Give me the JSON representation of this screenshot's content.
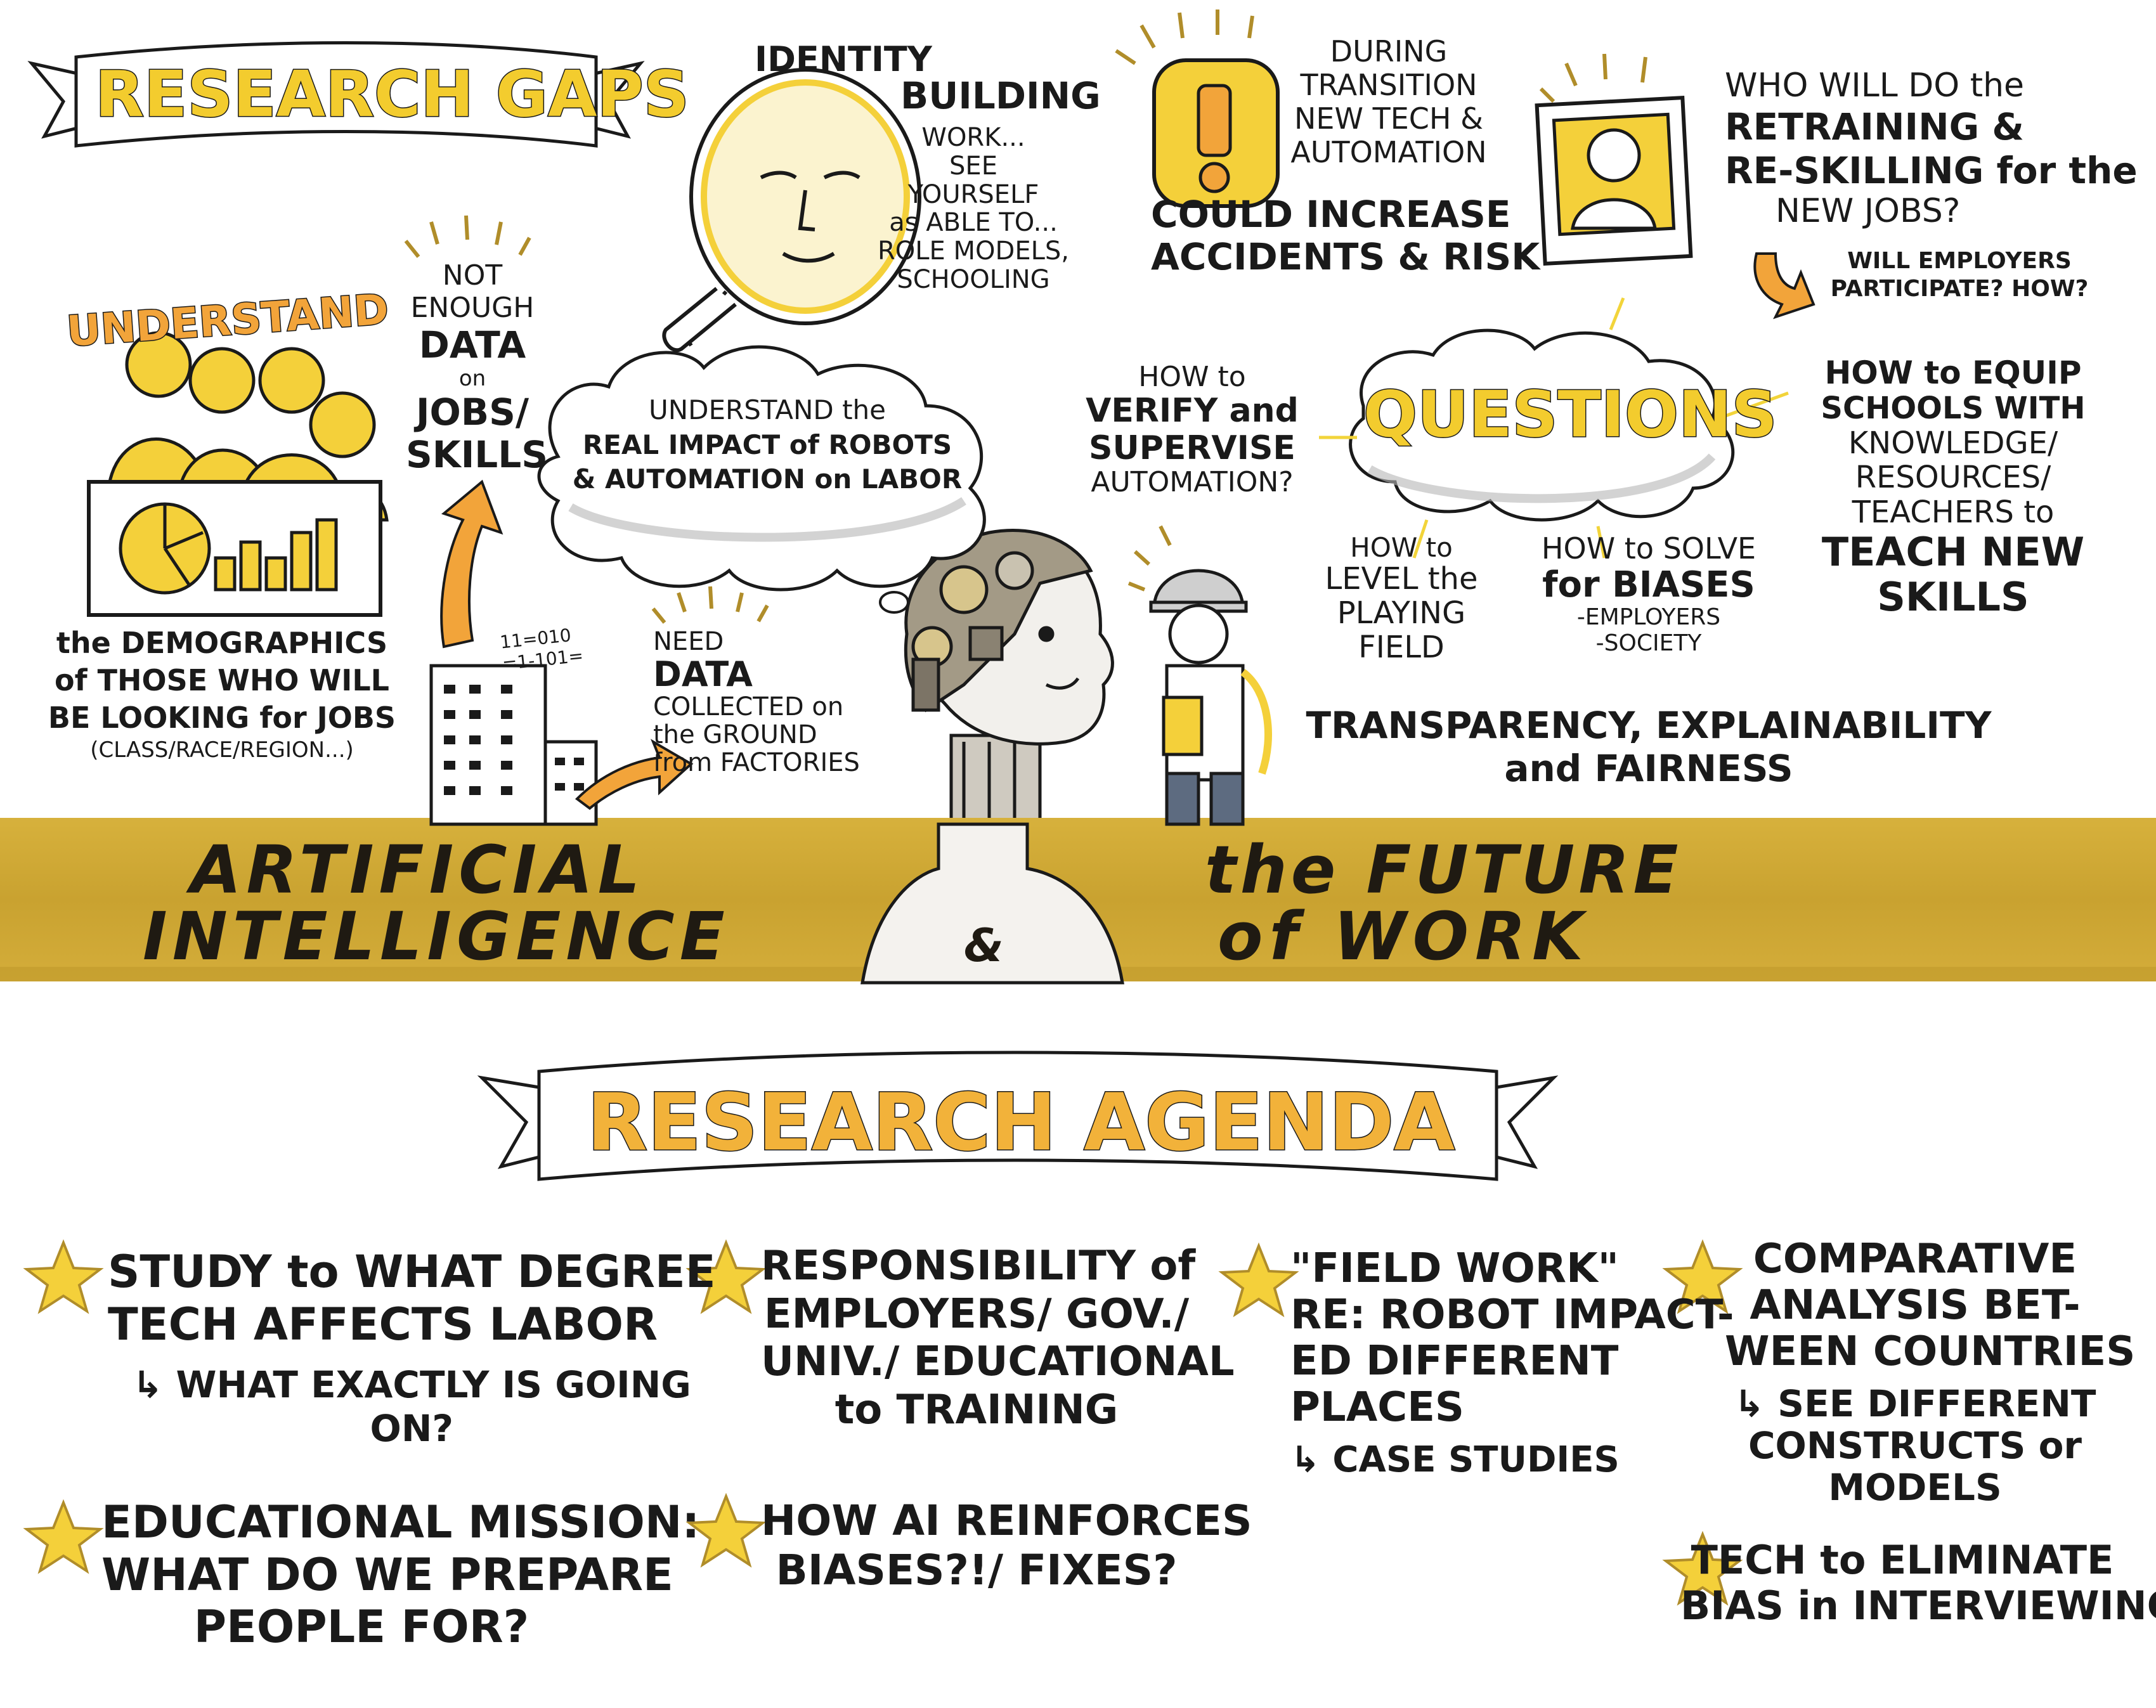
{
  "title": {
    "line1": "ARTIFICIAL",
    "line2": "INTELLIGENCE",
    "amp": "&",
    "line3": "the FUTURE",
    "line4": "of WORK"
  },
  "research_gaps": {
    "banner": "RESEARCH GAPS",
    "understand": {
      "heading": "UNDERSTAND",
      "lines": [
        "the DEMOGRAPHICS",
        "of THOSE WHO WILL",
        "BE LOOKING for JOBS",
        "(CLASS/RACE/REGION...)"
      ]
    },
    "not_enough_data": [
      "NOT",
      "ENOUGH",
      "DATA",
      "on",
      "JOBS/",
      "SKILLS"
    ],
    "need_data": [
      "NEED",
      "DATA",
      "COLLECTED on",
      "the GROUND",
      "from FACTORIES"
    ],
    "binary": [
      "11=010",
      "=1-101="
    ],
    "identity": [
      "IDENTITY",
      "BUILDING",
      "WORK...",
      "SEE",
      "YOURSELF",
      "as ABLE TO...",
      "ROLE MODELS,",
      "SCHOOLING"
    ],
    "thought_cloud": [
      "UNDERSTAND the",
      "REAL IMPACT of ROBOTS",
      "& AUTOMATION on LABOR"
    ],
    "accidents": [
      "DURING",
      "TRANSITION",
      "NEW TECH &",
      "AUTOMATION",
      "COULD INCREASE",
      "ACCIDENTS & RISK"
    ],
    "retraining": [
      "WHO WILL DO the",
      "RETRAINING &",
      "RE-SKILLING for the",
      "NEW JOBS?"
    ],
    "employers": [
      "WILL EMPLOYERS",
      "PARTICIPATE? HOW?"
    ],
    "questions": {
      "center": "QUESTIONS",
      "verify": [
        "HOW to",
        "VERIFY and",
        "SUPERVISE",
        "AUTOMATION?"
      ],
      "level": [
        "HOW to",
        "LEVEL the",
        "PLAYING",
        "FIELD"
      ],
      "biases": [
        "HOW to SOLVE",
        "for BIASES",
        "-EMPLOYERS",
        "-SOCIETY"
      ],
      "equip": [
        "HOW to EQUIP",
        "SCHOOLS WITH",
        "KNOWLEDGE/",
        "RESOURCES/",
        "TEACHERS to",
        "TEACH NEW",
        "SKILLS"
      ]
    },
    "transparency": [
      "TRANSPARENCY, EXPLAINABILITY",
      "and FAIRNESS"
    ]
  },
  "research_agenda": {
    "banner": "RESEARCH AGENDA",
    "items": [
      {
        "lines": [
          "STUDY to WHAT DEGREE",
          "TECH AFFECTS LABOR"
        ],
        "sub": [
          "↳ WHAT EXACTLY IS GOING",
          "ON?"
        ]
      },
      {
        "lines": [
          "EDUCATIONAL MISSION:",
          "WHAT DO WE PREPARE",
          "PEOPLE FOR?"
        ],
        "sub": []
      },
      {
        "lines": [
          "RESPONSIBILITY of",
          "EMPLOYERS/ GOV./",
          "UNIV./ EDUCATIONAL",
          "to TRAINING"
        ],
        "sub": []
      },
      {
        "lines": [
          "HOW AI REINFORCES",
          "BIASES?!/ FIXES?"
        ],
        "sub": []
      },
      {
        "lines": [
          "\"FIELD WORK\"",
          "RE: ROBOT IMPACT-",
          "ED DIFFERENT",
          "PLACES"
        ],
        "sub": [
          "↳ CASE STUDIES"
        ]
      },
      {
        "lines": [
          "COMPARATIVE",
          "ANALYSIS BET-",
          "WEEN COUNTRIES"
        ],
        "sub": [
          "↳ SEE DIFFERENT",
          "CONSTRUCTS or",
          "MODELS"
        ]
      },
      {
        "lines": [
          "TECH to ELIMINATE",
          "BIAS in INTERVIEWING"
        ],
        "sub": []
      }
    ]
  },
  "colors": {
    "band": "#cfa733",
    "yellow": "#f4d03a",
    "orange": "#f2a43a",
    "ink": "#1a1a1a",
    "gold": "#b08d2a",
    "gray": "#9a9a9a"
  }
}
